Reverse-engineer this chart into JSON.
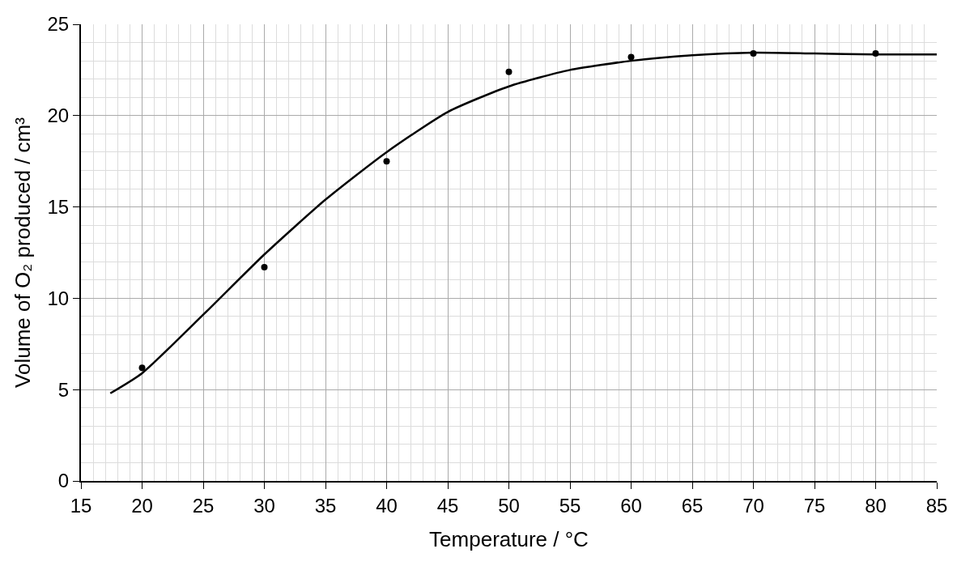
{
  "chart_data": {
    "type": "scatter",
    "xlabel": "Temperature / °C",
    "ylabel": "Volume of O₂ produced / cm³",
    "xlim": [
      15,
      85
    ],
    "xticks": [
      15,
      20,
      25,
      30,
      35,
      40,
      45,
      50,
      55,
      60,
      65,
      70,
      75,
      80,
      85
    ],
    "ylim": [
      0,
      25
    ],
    "yticks": [
      0,
      5,
      10,
      15,
      20,
      25
    ],
    "grid": true,
    "series": [
      {
        "color": "#000000",
        "marker": "circle",
        "x": [
          20,
          30,
          40,
          50,
          60,
          70,
          80
        ],
        "values": [
          6.2,
          11.7,
          17.5,
          22.4,
          23.2,
          23.4,
          23.4
        ]
      },
      {
        "type": "line",
        "color": "#000000",
        "marker": "none",
        "line_style": "solid",
        "x": [
          17.4,
          20,
          25,
          30,
          35,
          40,
          45,
          50,
          55,
          60,
          65,
          70,
          75,
          80,
          85
        ],
        "values": [
          4.8,
          5.9,
          9.1,
          12.4,
          15.4,
          18.0,
          20.2,
          21.6,
          22.5,
          23.0,
          23.3,
          23.45,
          23.4,
          23.35,
          23.35
        ]
      }
    ]
  }
}
